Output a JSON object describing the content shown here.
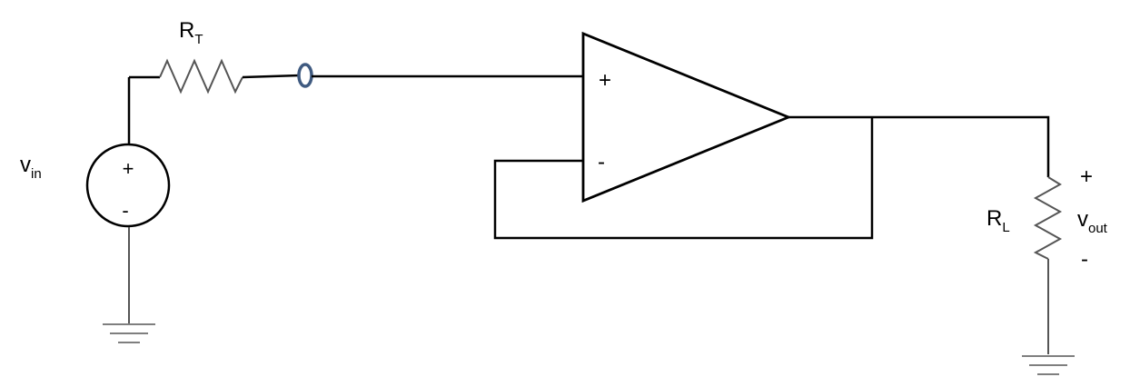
{
  "labels": {
    "rt_main": "R",
    "rt_sub": "T",
    "vin_main": "v",
    "vin_sub": "in",
    "rl_main": "R",
    "rl_sub": "L",
    "vout_main": "v",
    "vout_sub": "out"
  },
  "source_signs": {
    "plus": "+",
    "minus": "-"
  },
  "opamp_inputs": {
    "plus": "+",
    "minus": "-"
  },
  "output_polarity": {
    "plus": "+",
    "minus": "-"
  },
  "colors": {
    "wire": "#000000",
    "ground": "#555555",
    "terminal": "#3f5a80"
  }
}
